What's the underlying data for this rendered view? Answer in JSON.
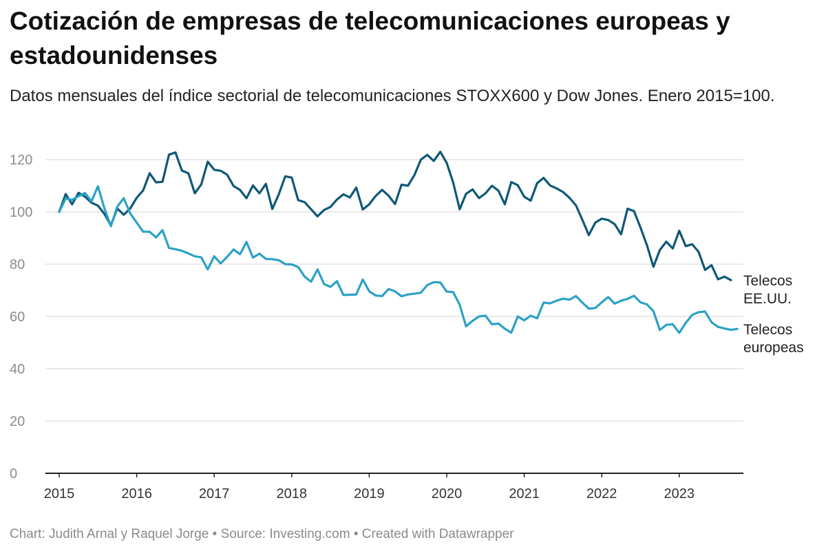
{
  "title": "Cotización de empresas de telecomunicaciones europeas y estadounidenses",
  "subtitle": "Datos mensuales del índice sectorial de telecomunicaciones STOXX600 y Dow Jones. Enero 2015=100.",
  "footer": "Chart: Judith Arnal y Raquel Jorge • Source: Investing.com • Created with Datawrapper",
  "chart_data": {
    "type": "line",
    "title": "Cotización de empresas de telecomunicaciones europeas y estadounidenses",
    "subtitle": "Datos mensuales del índice sectorial de telecomunicaciones STOXX600 y Dow Jones. Enero 2015=100.",
    "xlabel": "",
    "ylabel": "",
    "xlim": [
      2015,
      2023.917
    ],
    "ylim": [
      0,
      125
    ],
    "yticks": [
      0,
      20,
      40,
      60,
      80,
      100,
      120
    ],
    "xticks": [
      "2015",
      "2016",
      "2017",
      "2018",
      "2019",
      "2020",
      "2021",
      "2022",
      "2023"
    ],
    "x_start": "2015-01",
    "x_frequency": "monthly",
    "grid": true,
    "legend": "direct labels at line ends",
    "series": [
      {
        "name": "Telecos EE.UU.",
        "label_lines": [
          "Telecos",
          "EE.UU."
        ],
        "color": "#0f5776",
        "values": [
          100,
          106.8,
          102.9,
          107.3,
          105.8,
          103.5,
          102.4,
          99.2,
          94.9,
          101.3,
          98.9,
          101.3,
          105.4,
          108.2,
          114.8,
          111.3,
          111.5,
          121.9,
          122.7,
          115.8,
          114.8,
          107.1,
          110.5,
          119.2,
          116.1,
          115.7,
          114.2,
          109.9,
          108.4,
          105.2,
          110.1,
          107.1,
          110.7,
          101.1,
          106.7,
          113.6,
          113.1,
          104.5,
          103.7,
          101.0,
          98.3,
          100.7,
          101.9,
          104.7,
          106.7,
          105.5,
          109.3,
          100.9,
          102.9,
          106.1,
          108.4,
          106.2,
          103.0,
          110.4,
          110.0,
          114.1,
          120.0,
          121.8,
          119.5,
          123.0,
          118.7,
          111.2,
          101.0,
          106.9,
          108.6,
          105.3,
          107.1,
          110.0,
          108.1,
          102.9,
          111.4,
          110.2,
          105.8,
          104.3,
          111.0,
          113.0,
          110.1,
          109.0,
          107.6,
          105.4,
          102.5,
          97.0,
          91.1,
          95.9,
          97.4,
          96.9,
          95.3,
          91.4,
          101.2,
          100.3,
          94.0,
          87.2,
          79.0,
          85.4,
          88.6,
          86.0,
          92.8,
          86.9,
          87.6,
          84.7,
          77.8,
          79.6,
          74.2,
          75.2,
          73.9
        ]
      },
      {
        "name": "Telecos europeas",
        "label_lines": [
          "Telecos",
          "europeas"
        ],
        "color": "#2ba1c6",
        "values": [
          100,
          105.1,
          104.6,
          106.0,
          107.2,
          104.0,
          109.8,
          101.3,
          94.5,
          102.0,
          105.2,
          99.4,
          95.9,
          92.4,
          92.4,
          90.2,
          93.0,
          86.2,
          85.7,
          85.1,
          84.1,
          83.0,
          82.6,
          78.0,
          83.0,
          80.3,
          82.8,
          85.6,
          83.8,
          88.5,
          82.5,
          84.0,
          82.0,
          81.9,
          81.5,
          80.0,
          79.9,
          78.9,
          75.2,
          73.3,
          78.0,
          72.4,
          71.3,
          73.5,
          68.2,
          68.3,
          68.4,
          74.1,
          69.6,
          68.0,
          67.8,
          70.5,
          69.6,
          67.7,
          68.4,
          68.7,
          69.1,
          72.0,
          73.1,
          73.0,
          69.5,
          69.3,
          64.5,
          56.2,
          58.3,
          60.0,
          60.3,
          57.0,
          57.3,
          55.3,
          53.8,
          60.0,
          58.5,
          60.3,
          59.3,
          65.3,
          65.0,
          66.0,
          66.8,
          66.4,
          67.8,
          65.3,
          63.0,
          63.2,
          65.4,
          67.4,
          64.9,
          66.0,
          66.7,
          67.9,
          65.4,
          64.6,
          62.0,
          54.8,
          56.8,
          57.0,
          53.7,
          57.5,
          60.6,
          61.6,
          61.9,
          57.8,
          56.0,
          55.4,
          54.9,
          55.2
        ]
      }
    ]
  }
}
